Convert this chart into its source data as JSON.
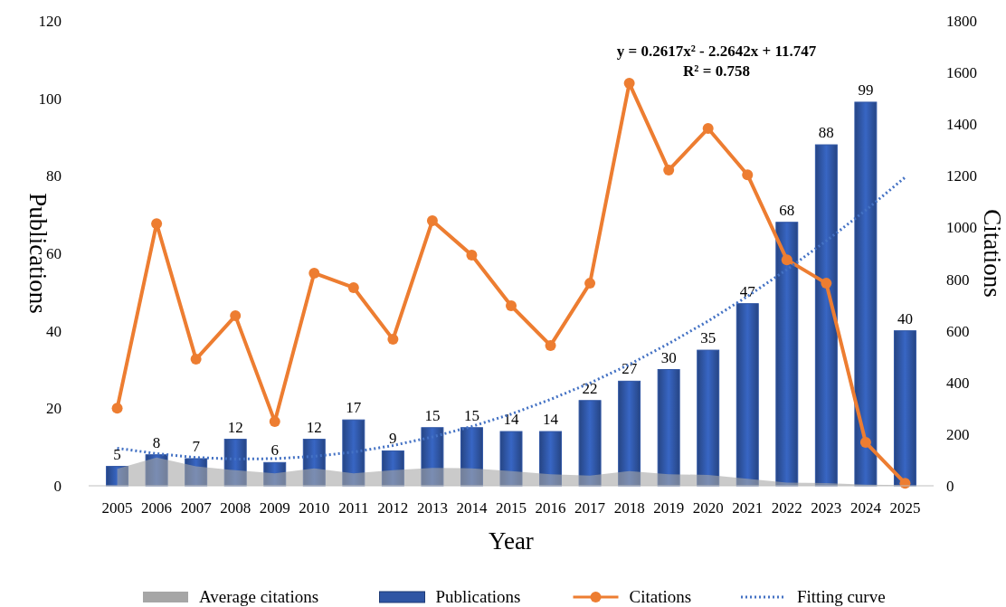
{
  "chart_data": {
    "type": "bar",
    "xlabel": "Year",
    "ylabel": "Publications",
    "y2label": "Citations",
    "categories": [
      "2005",
      "2006",
      "2007",
      "2008",
      "2009",
      "2010",
      "2011",
      "2012",
      "2013",
      "2014",
      "2015",
      "2016",
      "2017",
      "2018",
      "2019",
      "2020",
      "2021",
      "2022",
      "2023",
      "2024",
      "2025"
    ],
    "series": [
      {
        "name": "Average citations",
        "type": "area",
        "color": "#a6a6a6",
        "values": [
          4.4,
          7.3,
          5,
          4,
          3.2,
          4.5,
          3.2,
          4,
          4.6,
          4.5,
          3.8,
          3,
          2.6,
          3.8,
          3,
          2.8,
          1.8,
          0.8,
          0.7,
          0.3,
          0.2
        ]
      },
      {
        "name": "Publications",
        "color": "#2f55a4",
        "values": [
          5,
          8,
          7,
          12,
          6,
          12,
          17,
          9,
          15,
          15,
          14,
          14,
          22,
          27,
          30,
          35,
          47,
          68,
          88,
          99,
          40
        ],
        "value_labels": [
          "5",
          "8",
          "7",
          "12",
          "6",
          "12",
          "17",
          "9",
          "15",
          "15",
          "14",
          "14",
          "22",
          "27",
          "30",
          "35",
          "47",
          "68",
          "88",
          "99",
          "40"
        ]
      },
      {
        "name": "Citations",
        "type": "line",
        "axis": "y2",
        "color": "#ed7d31",
        "marker": "circle",
        "line_style": "solid",
        "values": [
          300,
          1015,
          490,
          658,
          249,
          823,
          767,
          567,
          1026,
          893,
          697,
          543,
          784,
          1558,
          1222,
          1383,
          1204,
          875,
          784,
          168,
          10
        ]
      },
      {
        "name": "Fitting curve",
        "type": "line",
        "color": "#4472c4",
        "marker": "none",
        "line_style": "dotted",
        "values": [
          9.7,
          8.3,
          7.3,
          6.9,
          7.0,
          7.6,
          8.7,
          10.4,
          12.6,
          15.3,
          18.5,
          22.3,
          26.5,
          31.3,
          36.7,
          42.5,
          48.9,
          55.8,
          63.2,
          71.1,
          79.6
        ]
      }
    ],
    "ylim": [
      0,
      120
    ],
    "yticks": [
      0,
      20,
      40,
      60,
      80,
      100,
      120
    ],
    "y2lim": [
      0,
      1800
    ],
    "y2ticks": [
      0,
      200,
      400,
      600,
      800,
      1000,
      1200,
      1400,
      1600,
      1800
    ],
    "annotations": [
      "y = 0.2617x² - 2.2642x + 11.747",
      "R² = 0.758"
    ],
    "legend": "bottom",
    "grid": false
  }
}
